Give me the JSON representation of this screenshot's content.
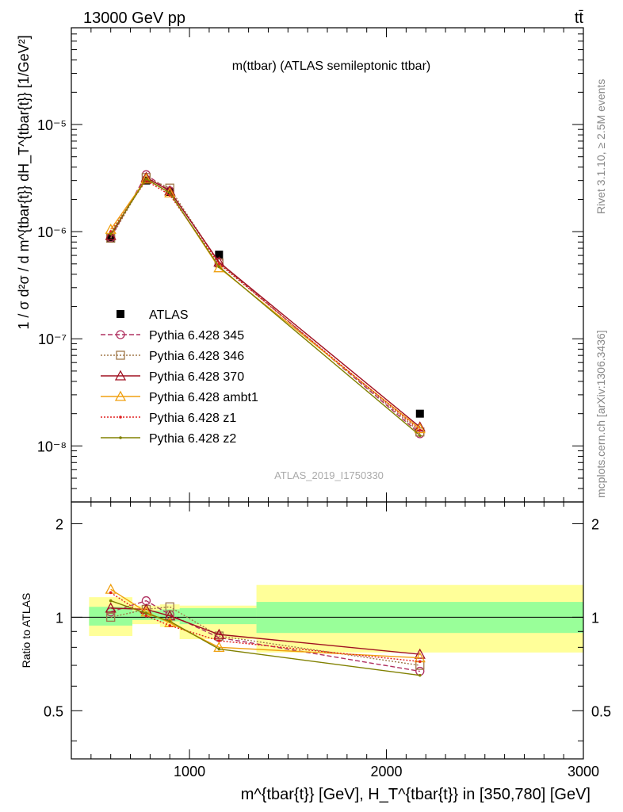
{
  "header": {
    "left": "13000 GeV pp",
    "right": "tt̄"
  },
  "side": {
    "rivet": "Rivet 3.1.10, ≥ 2.5M events",
    "mcplots": "mcplots.cern.ch [arXiv:1306.3436]"
  },
  "chart_data": [
    {
      "type": "scatter",
      "title": "m(ttbar) (ATLAS semileptonic ttbar)",
      "ylabel": "1 / σ d²σ / d m^{tbar{t}} dH_T^{tbar{t}} [1/GeV²]",
      "watermark": "ATLAS_2019_I1750330",
      "yscale": "log",
      "ylim": [
        3e-09,
        8e-05
      ],
      "xlim": [
        400,
        3000
      ],
      "yticks": [
        "10⁻⁸",
        "10⁻⁷",
        "10⁻⁶",
        "10⁻⁵"
      ],
      "legend_position": "middle-left",
      "x": [
        600,
        780,
        900,
        1150,
        2170
      ],
      "series": [
        {
          "name": "ATLAS",
          "color": "#000000",
          "marker": "square",
          "line": "none",
          "values": [
            8.6e-07,
            3e-06,
            2.35e-06,
            6.1e-07,
            2e-08
          ]
        },
        {
          "name": "Pythia 6.428 345",
          "color": "#b03060",
          "marker": "circle",
          "line": "dashed",
          "values": [
            8.8e-07,
            3.4e-06,
            2.4e-06,
            5.2e-07,
            1.3e-08
          ]
        },
        {
          "name": "Pythia 6.428 346",
          "color": "#a0784a",
          "marker": "square-open",
          "line": "dotted",
          "values": [
            8.7e-07,
            3.2e-06,
            2.55e-06,
            5.1e-07,
            1.35e-08
          ]
        },
        {
          "name": "Pythia 6.428 370",
          "color": "#a01020",
          "marker": "triangle",
          "line": "solid",
          "values": [
            9.2e-07,
            3.2e-06,
            2.4e-06,
            5.2e-07,
            1.5e-08
          ]
        },
        {
          "name": "Pythia 6.428 ambt1",
          "color": "#f0a010",
          "marker": "triangle-open",
          "line": "solid",
          "values": [
            1.05e-06,
            3.1e-06,
            2.3e-06,
            4.6e-07,
            1.45e-08
          ]
        },
        {
          "name": "Pythia 6.428 z1",
          "color": "#e02020",
          "marker": "dot",
          "line": "dotted",
          "values": [
            1e-06,
            3e-06,
            2.2e-06,
            5e-07,
            1.4e-08
          ]
        },
        {
          "name": "Pythia 6.428 z2",
          "color": "#808000",
          "marker": "dot",
          "line": "solid",
          "values": [
            9.5e-07,
            3.1e-06,
            2.3e-06,
            4.7e-07,
            1.25e-08
          ]
        }
      ]
    },
    {
      "type": "line",
      "ylabel": "Ratio to ATLAS",
      "xlabel": "m^{tbar{t}} [GeV], H_T^{tbar{t}} in [350,780] [GeV]",
      "ylim": [
        0.35,
        2.35
      ],
      "yscale": "log",
      "xlim": [
        400,
        3000
      ],
      "xticks": [
        "1000",
        "2000",
        "3000"
      ],
      "yticks": [
        "0.5",
        "1",
        "2"
      ],
      "x": [
        600,
        780,
        900,
        1150,
        2170
      ],
      "bands": [
        {
          "x0": 490,
          "x1": 710,
          "stat": [
            0.94,
            1.08
          ],
          "total": [
            0.87,
            1.16
          ]
        },
        {
          "x0": 710,
          "x1": 850,
          "stat": [
            0.98,
            1.05
          ],
          "total": [
            0.95,
            1.09
          ]
        },
        {
          "x0": 850,
          "x1": 950,
          "stat": [
            0.97,
            1.06
          ],
          "total": [
            0.93,
            1.1
          ]
        },
        {
          "x0": 950,
          "x1": 1340,
          "stat": [
            0.95,
            1.07
          ],
          "total": [
            0.85,
            1.09
          ]
        },
        {
          "x0": 1340,
          "x1": 3000,
          "stat": [
            0.89,
            1.12
          ],
          "total": [
            0.77,
            1.27
          ]
        }
      ],
      "series": [
        {
          "name": "Pythia 6.428 345",
          "values": [
            1.04,
            1.13,
            1.02,
            0.86,
            0.67
          ]
        },
        {
          "name": "Pythia 6.428 346",
          "values": [
            1.0,
            1.06,
            1.08,
            0.87,
            0.7
          ]
        },
        {
          "name": "Pythia 6.428 370",
          "values": [
            1.07,
            1.06,
            1.01,
            0.88,
            0.76
          ]
        },
        {
          "name": "Pythia 6.428 ambt1",
          "values": [
            1.23,
            1.04,
            0.96,
            0.8,
            0.74
          ]
        },
        {
          "name": "Pythia 6.428 z1",
          "values": [
            1.2,
            1.01,
            0.94,
            0.84,
            0.72
          ]
        },
        {
          "name": "Pythia 6.428 z2",
          "values": [
            1.13,
            1.03,
            0.97,
            0.79,
            0.65
          ]
        }
      ]
    }
  ]
}
